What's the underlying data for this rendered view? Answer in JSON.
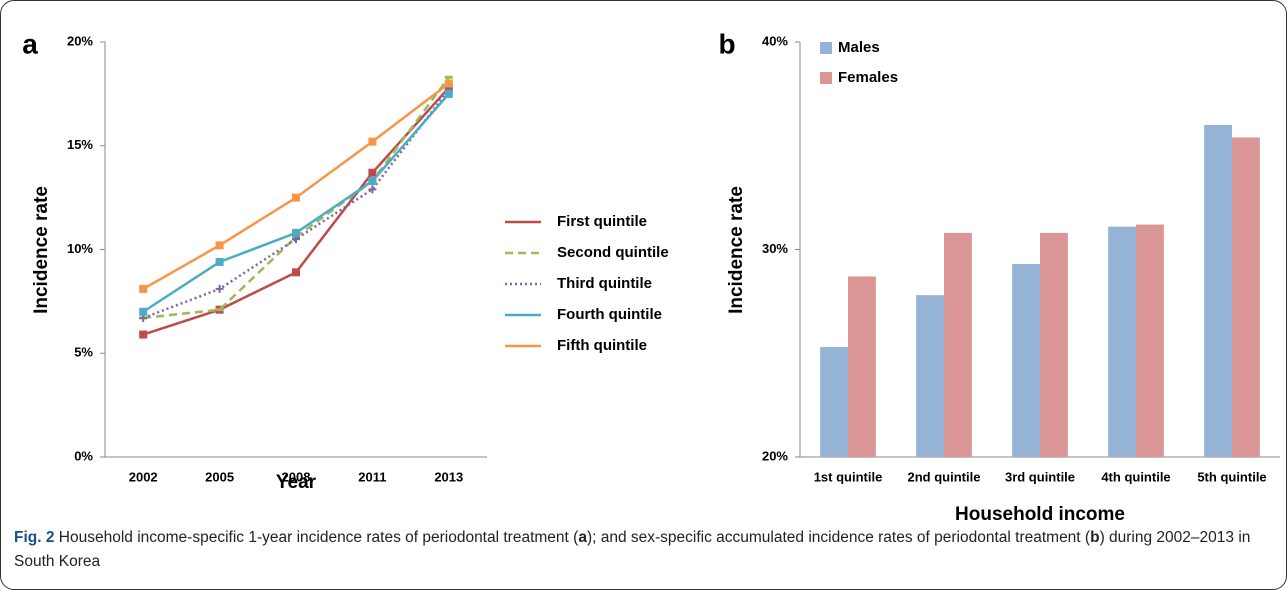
{
  "chart_data": [
    {
      "type": "line",
      "panel": "a",
      "y_label": "Incidence rate",
      "x_label": "Year",
      "categories": [
        "2002",
        "2005",
        "2008",
        "2011",
        "2013"
      ],
      "ylim": [
        0,
        20
      ],
      "yticks": [
        {
          "value": 0,
          "label": "0%"
        },
        {
          "value": 5,
          "label": "5%"
        },
        {
          "value": 10,
          "label": "10%"
        },
        {
          "value": 15,
          "label": "15%"
        },
        {
          "value": 20,
          "label": "20%"
        }
      ],
      "legend": "right",
      "series": [
        {
          "name": "First quintile",
          "color": "#be4b48",
          "line_style": "solid",
          "marker": "square",
          "values": [
            5.9,
            7.1,
            8.9,
            13.7,
            17.8
          ]
        },
        {
          "name": "Second quintile",
          "color": "#9bbb59",
          "line_style": "dashed",
          "marker": "dash",
          "values": [
            6.7,
            7.1,
            10.6,
            13.3,
            18.3
          ]
        },
        {
          "name": "Third quintile",
          "color": "#8064a2",
          "line_style": "dotted",
          "marker": "plus",
          "values": [
            6.7,
            8.1,
            10.5,
            12.9,
            17.7
          ]
        },
        {
          "name": "Fourth quintile",
          "color": "#4bacc6",
          "line_style": "solid",
          "marker": "square",
          "values": [
            7.0,
            9.4,
            10.8,
            13.3,
            17.5
          ]
        },
        {
          "name": "Fifth quintile",
          "color": "#f79646",
          "line_style": "solid",
          "marker": "square",
          "values": [
            8.1,
            10.2,
            12.5,
            15.2,
            18.0
          ]
        }
      ]
    },
    {
      "type": "bar",
      "panel": "b",
      "y_label": "Incidence rate",
      "x_label": "Household income",
      "categories": [
        "1st quintile",
        "2nd quintile",
        "3rd quintile",
        "4th quintile",
        "5th quintile"
      ],
      "ylim": [
        20,
        40
      ],
      "yticks": [
        {
          "value": 20,
          "label": "20%"
        },
        {
          "value": 30,
          "label": "30%"
        },
        {
          "value": 40,
          "label": "40%"
        }
      ],
      "legend": "top-left",
      "series": [
        {
          "name": "Males",
          "color": "#95b3d7",
          "values": [
            25.3,
            27.8,
            29.3,
            31.1,
            36.0
          ]
        },
        {
          "name": "Females",
          "color": "#d99694",
          "values": [
            28.7,
            30.8,
            30.8,
            31.2,
            35.4
          ]
        }
      ]
    }
  ],
  "caption": {
    "label": "Fig. 2",
    "text": [
      " Household income-specific 1-year incidence rates of periodontal treatment (",
      "a",
      "); and sex-specific accumulated incidence rates of periodontal treatment (",
      "b",
      ") during 2002–2013 in South Korea"
    ]
  }
}
